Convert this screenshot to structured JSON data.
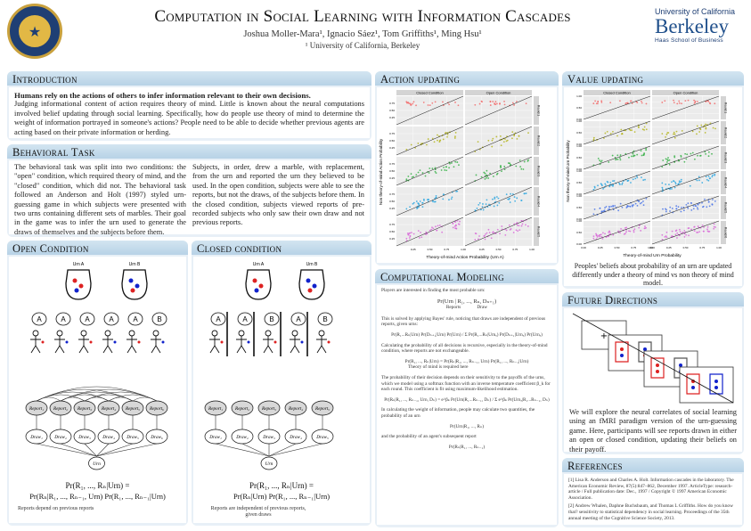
{
  "header": {
    "title": "Computation in Social Learning with Information Cascades",
    "authors": "Joshua Moller-Mara¹, Ignacio Sáez¹, Tom Griffiths¹, Ming Hsu¹",
    "affiliation": "¹ University of California, Berkeley",
    "brand_top": "University of California",
    "brand_main": "Berkeley",
    "brand_sub": "Haas School of Business",
    "seal_text": "1868"
  },
  "intro": {
    "heading": "Introduction",
    "lead": "Humans rely on the actions of others to infer information relevant to their own decisions.",
    "body": "Judging informational content of action requires theory of mind. Little is known about the neural computations involved belief updating through social learning. Specifically, how do people use theory of mind to determine the weight of information portrayed in someone's actions? People need to be able to decide whether previous agents are acting based on their private information or herding."
  },
  "task": {
    "heading": "Behavioral Task",
    "col1": "The behavioral task was split into two conditions: the \"open\" condition, which required theory of mind, and the \"closed\" condition, which did not. The behavioral task followed an Anderson and Holt (1997) styled urn-guessing game in which subjects were presented with two urns containing different sets of marbles. Their goal in the game was to infer the urn used to generate the draws of themselves and the subjects before them.",
    "col2": "Subjects, in order, drew a marble, with replacement, from the urn and reported the urn they believed to be used. In the open condition, subjects were able to see the reports, but not the draws, of the subjects before them. In the closed condition, subjects viewed reports of pre-recorded subjects who only saw their own draw and not previous reports."
  },
  "open": {
    "heading": "Open Condition",
    "urn_a": "Urn A",
    "urn_b": "Urn B",
    "bubbles": [
      "A",
      "A",
      "A",
      "A",
      "A",
      "B"
    ],
    "reports": [
      "Report₁",
      "Report₂",
      "Report₃",
      "Report₄",
      "Report₅",
      "Report₆"
    ],
    "draws": [
      "Draw₁",
      "Draw₂",
      "Draw₃",
      "Draw₄",
      "Draw₅",
      "Draw₆"
    ],
    "urn_node": "Urn",
    "eq1": "Pr(R₁, ..., Rₙ|Urn) =",
    "eq2": "Pr(Rₙ|R₁, ..., Rₙ₋₁, Urn)  Pr(R₁, ..., Rₙ₋₁|Urn)",
    "note": "Reports depend on previous reports"
  },
  "closed": {
    "heading": "Closed condition",
    "urn_a": "Urn A",
    "urn_b": "Urn B",
    "bubbles": [
      "A",
      "A",
      "B",
      "A",
      "B"
    ],
    "reports": [
      "Report₁",
      "Report₂",
      "Report₃",
      "Report₄",
      "Report₅"
    ],
    "draws": [
      "Draw₁",
      "Draw₂",
      "Draw₃",
      "Draw₄",
      "Draw₅"
    ],
    "urn_node": "Urn",
    "eq1": "Pr(R₁, ..., Rₙ|Urn) =",
    "eq2": "Pr(Rₙ|Urn)  Pr(R₁, ..., Rₙ₋₁|Urn)",
    "note": "Reports are independent of previous reports, given draws"
  },
  "action": {
    "heading": "Action updating",
    "xlabel": "Theory-of-mind Action Probability (Urn A)",
    "ylabel": "Non theory-of-mind Action Probability",
    "facet_cols": [
      "Closed Condition",
      "Open Condition"
    ],
    "facet_rows": [
      "Round 1",
      "Round 2",
      "Round 3",
      "Round 4",
      "Round 5"
    ]
  },
  "value": {
    "heading": "Value updating",
    "xlabel": "Theory-of-mind Urn Probability",
    "ylabel": "Non theory-of-mind Urn Probability",
    "facet_cols": [
      "Closed Condition",
      "Open Condition"
    ],
    "facet_rows": [
      "Round 1",
      "Round 2",
      "Round 3",
      "Round 4",
      "Round 5",
      "Round 6"
    ],
    "caption": "Peoples' beliefs about probability of an urn are updated differently under a theory of mind vs non theory of mind model."
  },
  "modeling": {
    "heading": "Computational Modeling",
    "p1": "Players are interested in finding the most probable urn:",
    "e1": "Pr(Urn | R₁, ..., Rₙ, Dₙ₊₁)",
    "e1a": "Reports",
    "e1b": "Draw",
    "p2": "This is solved by applying Bayes' rule, noticing that draws are independent of previous reports, given urns:",
    "e2": "Pr(R₁...Rₙ|Urn) Pr(Dₙ₊₁|Urn) Pr(Urn) / Σ Pr(R₁...Rₙ|Urnₓ) Pr(Dₙ₊₁|Urnₓ) Pr(Urnₓ)",
    "p3": "Calculating the probability of all decisions is recursive, especially in the theory-of-mind condition, where reports are not exchangeable.",
    "e3": "Pr(R₁, ..., Rₙ|Urn) = Pr(Rₙ|R₁, ..., Rₙ₋₁, Urn)  Pr(R₁, ..., Rₙ₋₁|Urn)",
    "e3a": "Theory of mind is required here",
    "p4": "The probability of their decision depends on their sensitivity to the payoffs of the urns, which we model using a softmax function with an inverse temperature coefficient β_k for each round. This coefficient is fit using maximum-likelihood estimation.",
    "e4": "Pr(Rₙ|R₁, ..., Rₙ₋₁, Urn, Dₙ) = e^βₖ Pr(Urn|R₁...Rₙ₋₁, Dₙ) / Σ e^βₖ Pr(Urnₓ|R₁...Rₙ₋₁, Dₙ)",
    "p5": "In calculating the weight of information, people may calculate two quantities, the probability of an urn",
    "e5": "Pr(Urn|R₁, ..., Rₙ)",
    "p6": "and the probability of an agent's subsequent report",
    "e6": "Pr(Rₙ|R₁, ..., Rₙ₋₁)"
  },
  "future": {
    "heading": "Future Directions",
    "body": "We will explore the neural correlates of social learning using an fMRI paradigm version of the urn-guessing game. Here, participants will see reports drawn in either an open or closed condition, updating their beliefs on their payoff."
  },
  "refs": {
    "heading": "References",
    "r1": "[1] Lisa R. Anderson and Charles A. Holt. Information cascades in the laboratory. The American Economic Review, 87(5):847–862, December 1997. ArticleType: research-article / Full publication date: Dec., 1997 / Copyright © 1997 American Economic Association.",
    "r2": "[2] Andrew Whalen, Daphne Buchsbaum, and Thomas L Griffiths. How do you know that? sensitivity to statistical dependency in social learning. Proceedings of the 35th annual meeting of the Cognitive Science Society, 2013."
  },
  "chart_data": [
    {
      "type": "scatter",
      "title": "",
      "xlabel": "Theory-of-mind Action Probability (Urn A)",
      "ylabel": "Non theory-of-mind Action Probability",
      "xlim": [
        0,
        1
      ],
      "ylim": [
        0,
        1
      ],
      "grid": true,
      "facet_cols": [
        "Closed Condition",
        "Open Condition"
      ],
      "facet_rows": [
        "Round 1",
        "Round 2",
        "Round 3",
        "Round 4",
        "Round 5"
      ],
      "colors": [
        "#f26b6b",
        "#b5b51f",
        "#35b045",
        "#2aa6e0",
        "#d86ad8"
      ],
      "xticks": [
        "0.25",
        "0.50",
        "0.75",
        "1.00"
      ],
      "yticks": [
        "0.25",
        "0.50",
        "0.75"
      ]
    },
    {
      "type": "scatter",
      "title": "",
      "xlabel": "Theory-of-mind Urn Probability",
      "ylabel": "Non theory-of-mind Urn Probability",
      "xlim": [
        0,
        1
      ],
      "ylim": [
        0,
        1
      ],
      "grid": true,
      "facet_cols": [
        "Closed Condition",
        "Open Condition"
      ],
      "facet_rows": [
        "Round 1",
        "Round 2",
        "Round 3",
        "Round 4",
        "Round 5",
        "Round 6"
      ],
      "colors": [
        "#f26b6b",
        "#b5b51f",
        "#35b045",
        "#2aa6e0",
        "#4a74e8",
        "#d86ad8"
      ],
      "xticks": [
        "0.00",
        "0.25",
        "0.50",
        "0.75",
        "1.00"
      ],
      "yticks": [
        "0.00",
        "0.50",
        "1.00"
      ]
    }
  ]
}
